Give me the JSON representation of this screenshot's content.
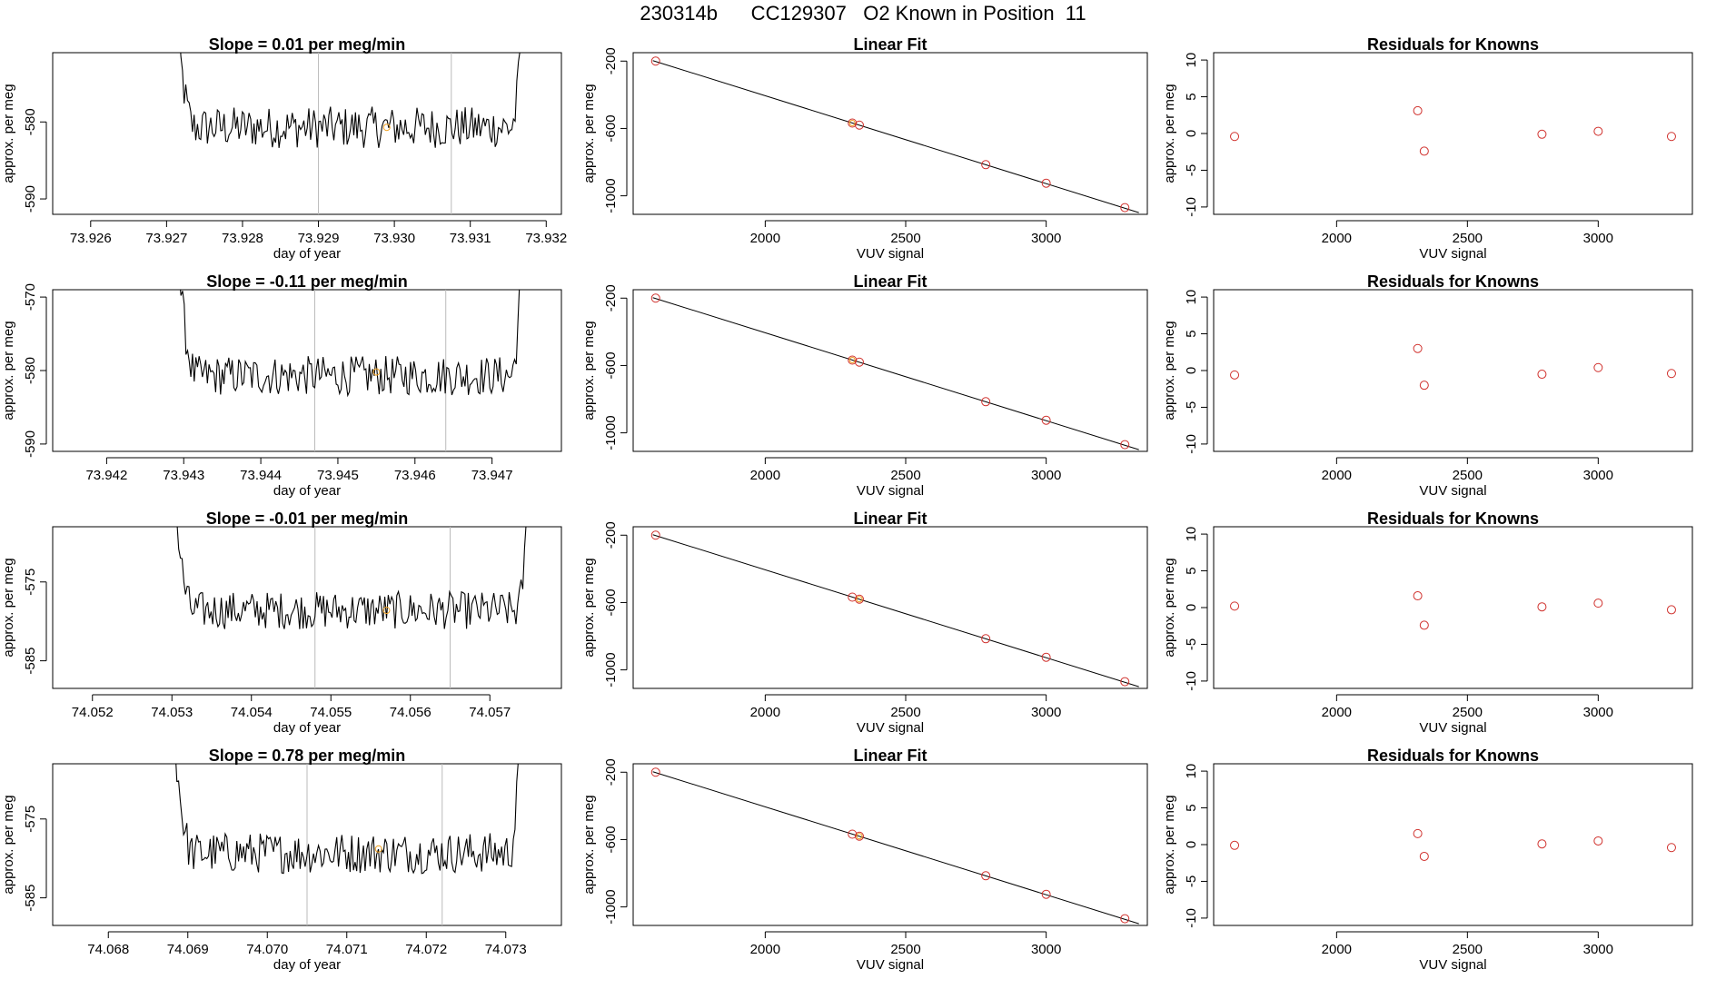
{
  "page_title": "230314b      CC129307   O2 Known in Position  11",
  "colors": {
    "trace": "#000000",
    "known_marker": "#d0312d",
    "highlight_marker": "#f0a020",
    "gridline": "#bbbbbb"
  },
  "chart_data": [
    {
      "row": 1,
      "panels": [
        {
          "type": "line",
          "title": "Slope =  0.01  per meg/min",
          "xlabel": "day of year",
          "ylabel": "approx. per meg",
          "xlim": [
            73.9255,
            73.9322
          ],
          "ylim": [
            -592,
            -571
          ],
          "xticks": [
            73.926,
            73.927,
            73.928,
            73.929,
            73.93,
            73.931,
            73.932
          ],
          "xtick_labels": [
            "73.926",
            "73.927",
            "73.928",
            "73.929",
            "73.930",
            "73.931",
            "73.932"
          ],
          "yticks": [
            -590,
            -580
          ],
          "ytick_labels": [
            "-590",
            "-580"
          ],
          "vlines": [
            73.929,
            73.93075
          ],
          "x_start": 73.9271,
          "x_end": 73.9317,
          "center": -580.7,
          "noise": 2.7,
          "highlight_point": [
            73.9299,
            -580.7
          ]
        },
        {
          "type": "scatter",
          "title": "Linear Fit",
          "xlabel": "VUV signal",
          "ylabel": "approx. per meg",
          "xlim": [
            1530,
            3360
          ],
          "ylim": [
            -1110,
            -150
          ],
          "xticks": [
            2000,
            2500,
            3000
          ],
          "xtick_labels": [
            "2000",
            "2500",
            "3000"
          ],
          "yticks": [
            -1000,
            -600,
            -200
          ],
          "ytick_labels": [
            "-1000",
            "-600",
            "-200"
          ],
          "fit_line": [
            [
              1600,
              -197
            ],
            [
              3330,
              -1100
            ]
          ],
          "points": [
            [
              1610,
              -200
            ],
            [
              2310,
              -568
            ],
            [
              2335,
              -580
            ],
            [
              2785,
              -815
            ],
            [
              3000,
              -925
            ],
            [
              3280,
              -1070
            ]
          ],
          "highlight_index": 1
        },
        {
          "type": "scatter",
          "title": "Residuals for Knowns",
          "xlabel": "VUV signal",
          "ylabel": "approx. per meg",
          "xlim": [
            1530,
            3360
          ],
          "ylim": [
            -11,
            11
          ],
          "xticks": [
            2000,
            2500,
            3000
          ],
          "xtick_labels": [
            "2000",
            "2500",
            "3000"
          ],
          "yticks": [
            -10,
            -5,
            0,
            5,
            10
          ],
          "ytick_labels": [
            "-10",
            "-5",
            "0",
            "5",
            "10"
          ],
          "points": [
            [
              1610,
              -0.4
            ],
            [
              2310,
              3.1
            ],
            [
              2335,
              -2.4
            ],
            [
              2785,
              -0.1
            ],
            [
              3000,
              0.3
            ],
            [
              3280,
              -0.4
            ]
          ]
        }
      ]
    },
    {
      "row": 2,
      "panels": [
        {
          "type": "line",
          "title": "Slope =  -0.11  per meg/min",
          "xlabel": "day of year",
          "ylabel": "approx. per meg",
          "xlim": [
            73.9413,
            73.9479
          ],
          "ylim": [
            -591,
            -569
          ],
          "xticks": [
            73.942,
            73.943,
            73.944,
            73.945,
            73.946,
            73.947
          ],
          "xtick_labels": [
            "73.942",
            "73.943",
            "73.944",
            "73.945",
            "73.946",
            "73.947"
          ],
          "yticks": [
            -590,
            -580,
            -570
          ],
          "ytick_labels": [
            "-590",
            "-580",
            "-570"
          ],
          "vlines": [
            73.9447,
            73.9464
          ],
          "x_start": 73.9429,
          "x_end": 73.9474,
          "center": -580.7,
          "noise": 2.7,
          "highlight_point": [
            73.9455,
            -580.2
          ]
        },
        {
          "type": "scatter",
          "title": "Linear Fit",
          "xlabel": "VUV signal",
          "ylabel": "approx. per meg",
          "xlim": [
            1530,
            3360
          ],
          "ylim": [
            -1110,
            -150
          ],
          "xticks": [
            2000,
            2500,
            3000
          ],
          "xtick_labels": [
            "2000",
            "2500",
            "3000"
          ],
          "yticks": [
            -1000,
            -600,
            -200
          ],
          "ytick_labels": [
            "-1000",
            "-600",
            "-200"
          ],
          "fit_line": [
            [
              1600,
              -197
            ],
            [
              3330,
              -1100
            ]
          ],
          "points": [
            [
              1610,
              -200
            ],
            [
              2310,
              -568
            ],
            [
              2335,
              -580
            ],
            [
              2785,
              -815
            ],
            [
              3000,
              -925
            ],
            [
              3280,
              -1070
            ]
          ],
          "highlight_index": 1
        },
        {
          "type": "scatter",
          "title": "Residuals for Knowns",
          "xlabel": "VUV signal",
          "ylabel": "approx. per meg",
          "xlim": [
            1530,
            3360
          ],
          "ylim": [
            -11,
            11
          ],
          "xticks": [
            2000,
            2500,
            3000
          ],
          "xtick_labels": [
            "2000",
            "2500",
            "3000"
          ],
          "yticks": [
            -10,
            -5,
            0,
            5,
            10
          ],
          "ytick_labels": [
            "-10",
            "-5",
            "0",
            "5",
            "10"
          ],
          "points": [
            [
              1610,
              -0.6
            ],
            [
              2310,
              3.0
            ],
            [
              2335,
              -2.0
            ],
            [
              2785,
              -0.5
            ],
            [
              3000,
              0.4
            ],
            [
              3280,
              -0.4
            ]
          ]
        }
      ]
    },
    {
      "row": 3,
      "panels": [
        {
          "type": "line",
          "title": "Slope =  -0.01  per meg/min",
          "xlabel": "day of year",
          "ylabel": "approx. per meg",
          "xlim": [
            74.0515,
            74.0579
          ],
          "ylim": [
            -588.5,
            -568
          ],
          "xticks": [
            74.052,
            74.053,
            74.054,
            74.055,
            74.056,
            74.057
          ],
          "xtick_labels": [
            "74.052",
            "74.053",
            "74.054",
            "74.055",
            "74.056",
            "74.057"
          ],
          "yticks": [
            -585,
            -575
          ],
          "ytick_labels": [
            "-585",
            "-575"
          ],
          "vlines": [
            74.0548,
            74.0565
          ],
          "x_start": 74.053,
          "x_end": 74.0575,
          "center": -578.6,
          "noise": 2.4,
          "highlight_point": [
            74.0557,
            -578.6
          ]
        },
        {
          "type": "scatter",
          "title": "Linear Fit",
          "xlabel": "VUV signal",
          "ylabel": "approx. per meg",
          "xlim": [
            1530,
            3360
          ],
          "ylim": [
            -1110,
            -150
          ],
          "xticks": [
            2000,
            2500,
            3000
          ],
          "xtick_labels": [
            "2000",
            "2500",
            "3000"
          ],
          "yticks": [
            -1000,
            -600,
            -200
          ],
          "ytick_labels": [
            "-1000",
            "-600",
            "-200"
          ],
          "fit_line": [
            [
              1600,
              -197
            ],
            [
              3330,
              -1100
            ]
          ],
          "points": [
            [
              1610,
              -200
            ],
            [
              2310,
              -568
            ],
            [
              2335,
              -580
            ],
            [
              2785,
              -815
            ],
            [
              3000,
              -925
            ],
            [
              3280,
              -1070
            ]
          ],
          "highlight_index": 2
        },
        {
          "type": "scatter",
          "title": "Residuals for Knowns",
          "xlabel": "VUV signal",
          "ylabel": "approx. per meg",
          "xlim": [
            1530,
            3360
          ],
          "ylim": [
            -11,
            11
          ],
          "xticks": [
            2000,
            2500,
            3000
          ],
          "xtick_labels": [
            "2000",
            "2500",
            "3000"
          ],
          "yticks": [
            -10,
            -5,
            0,
            5,
            10
          ],
          "ytick_labels": [
            "-10",
            "-5",
            "0",
            "5",
            "10"
          ],
          "points": [
            [
              1610,
              0.2
            ],
            [
              2310,
              1.6
            ],
            [
              2335,
              -2.4
            ],
            [
              2785,
              0.1
            ],
            [
              3000,
              0.6
            ],
            [
              3280,
              -0.3
            ]
          ]
        }
      ]
    },
    {
      "row": 4,
      "panels": [
        {
          "type": "line",
          "title": "Slope =  0.78  per meg/min",
          "xlabel": "day of year",
          "ylabel": "approx. per meg",
          "xlim": [
            74.0673,
            74.0737
          ],
          "ylim": [
            -588.5,
            -568
          ],
          "xticks": [
            74.068,
            74.069,
            74.07,
            74.071,
            74.072,
            74.073
          ],
          "xtick_labels": [
            "74.068",
            "74.069",
            "74.070",
            "74.071",
            "74.072",
            "74.073"
          ],
          "yticks": [
            -585,
            -575
          ],
          "ytick_labels": [
            "-585",
            "-575"
          ],
          "vlines": [
            74.0705,
            74.0722
          ],
          "x_start": 74.0688,
          "x_end": 74.0732,
          "center": -579.3,
          "noise": 2.6,
          "highlight_point": [
            74.0714,
            -578.8
          ]
        },
        {
          "type": "scatter",
          "title": "Linear Fit",
          "xlabel": "VUV signal",
          "ylabel": "approx. per meg",
          "xlim": [
            1530,
            3360
          ],
          "ylim": [
            -1110,
            -150
          ],
          "xticks": [
            2000,
            2500,
            3000
          ],
          "xtick_labels": [
            "2000",
            "2500",
            "3000"
          ],
          "yticks": [
            -1000,
            -600,
            -200
          ],
          "ytick_labels": [
            "-1000",
            "-600",
            "-200"
          ],
          "fit_line": [
            [
              1600,
              -197
            ],
            [
              3330,
              -1100
            ]
          ],
          "points": [
            [
              1610,
              -200
            ],
            [
              2310,
              -568
            ],
            [
              2335,
              -580
            ],
            [
              2785,
              -815
            ],
            [
              3000,
              -925
            ],
            [
              3280,
              -1070
            ]
          ],
          "highlight_index": 2
        },
        {
          "type": "scatter",
          "title": "Residuals for Knowns",
          "xlabel": "VUV signal",
          "ylabel": "approx. per meg",
          "xlim": [
            1530,
            3360
          ],
          "ylim": [
            -11,
            11
          ],
          "xticks": [
            2000,
            2500,
            3000
          ],
          "xtick_labels": [
            "2000",
            "2500",
            "3000"
          ],
          "yticks": [
            -10,
            -5,
            0,
            5,
            10
          ],
          "ytick_labels": [
            "-10",
            "-5",
            "0",
            "5",
            "10"
          ],
          "points": [
            [
              1610,
              -0.1
            ],
            [
              2310,
              1.5
            ],
            [
              2335,
              -1.6
            ],
            [
              2785,
              0.1
            ],
            [
              3000,
              0.5
            ],
            [
              3280,
              -0.4
            ]
          ]
        }
      ]
    }
  ]
}
